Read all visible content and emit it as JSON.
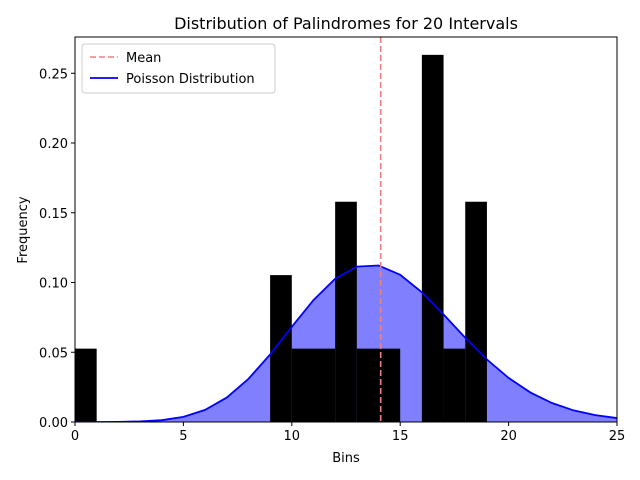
{
  "chart_data": {
    "type": "bar",
    "title": "Distribution of Palindromes for 20 Intervals",
    "xlabel": "Bins",
    "ylabel": "Frequency",
    "xlim": [
      0,
      25
    ],
    "ylim": [
      0,
      0.276
    ],
    "xticks": [
      0,
      5,
      10,
      15,
      20,
      25
    ],
    "yticks": [
      0.0,
      0.05,
      0.1,
      0.15,
      0.2,
      0.25
    ],
    "ytick_labels": [
      "0.00",
      "0.05",
      "0.10",
      "0.15",
      "0.20",
      "0.25"
    ],
    "histogram": {
      "color": "#000000",
      "bins": [
        {
          "start": 0,
          "end": 1,
          "value": 0.0526
        },
        {
          "start": 9,
          "end": 10,
          "value": 0.1053
        },
        {
          "start": 10,
          "end": 11,
          "value": 0.0526
        },
        {
          "start": 11,
          "end": 12,
          "value": 0.0526
        },
        {
          "start": 12,
          "end": 13,
          "value": 0.1579
        },
        {
          "start": 13,
          "end": 14,
          "value": 0.0526
        },
        {
          "start": 14,
          "end": 15,
          "value": 0.0526
        },
        {
          "start": 16,
          "end": 17,
          "value": 0.2632
        },
        {
          "start": 17,
          "end": 18,
          "value": 0.0526
        },
        {
          "start": 18,
          "end": 19,
          "value": 0.1579
        }
      ]
    },
    "mean": {
      "name": "Mean",
      "x": 14.1,
      "color": "#f08080"
    },
    "poisson": {
      "name": "Poisson Distribution",
      "line_color": "#0000ff",
      "fill_color": "#8080ff",
      "x": [
        0,
        1,
        2,
        3,
        4,
        5,
        6,
        7,
        8,
        9,
        10,
        11,
        12,
        13,
        14,
        15,
        16,
        17,
        18,
        19,
        20,
        21,
        22,
        23,
        24,
        25
      ],
      "y": [
        0.0,
        0.0,
        0.0001,
        0.0004,
        0.0013,
        0.0037,
        0.0087,
        0.0175,
        0.0309,
        0.0484,
        0.0682,
        0.0874,
        0.1027,
        0.1114,
        0.1122,
        0.1055,
        0.093,
        0.0771,
        0.0604,
        0.0448,
        0.0316,
        0.0212,
        0.0136,
        0.0083,
        0.0049,
        0.0028
      ]
    },
    "legend": {
      "placement": "top-left",
      "entries": [
        "Mean",
        "Poisson Distribution"
      ]
    },
    "grid": false
  }
}
